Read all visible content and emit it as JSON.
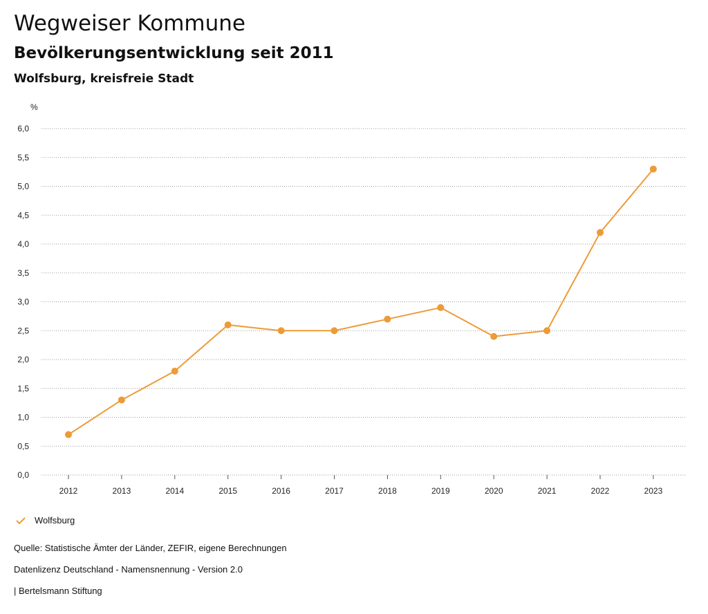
{
  "header": {
    "title": "Wegweiser Kommune",
    "subtitle": "Bevölkerungsentwicklung seit 2011",
    "region": "Wolfsburg, kreisfreie Stadt"
  },
  "chart_data": {
    "type": "line",
    "unit_label": "%",
    "categories": [
      "2012",
      "2013",
      "2014",
      "2015",
      "2016",
      "2017",
      "2018",
      "2019",
      "2020",
      "2021",
      "2022",
      "2023"
    ],
    "series": [
      {
        "name": "Wolfsburg",
        "color": "#ED9B36",
        "values": [
          0.7,
          1.3,
          1.8,
          2.6,
          2.5,
          2.5,
          2.7,
          2.9,
          2.4,
          2.5,
          4.2,
          5.3
        ]
      }
    ],
    "ylim": [
      0,
      6
    ],
    "yticks": [
      "0,0",
      "0,5",
      "1,0",
      "1,5",
      "2,0",
      "2,5",
      "3,0",
      "3,5",
      "4,0",
      "4,5",
      "5,0",
      "5,5",
      "6,0"
    ],
    "grid": true,
    "legend_position": "bottom-left"
  },
  "legend": {
    "label": "Wolfsburg"
  },
  "footer": {
    "source": "Quelle: Statistische Ämter der Länder, ZEFIR, eigene Berechnungen",
    "license": "Datenlizenz Deutschland - Namensnennung - Version 2.0",
    "publisher": "| Bertelsmann Stiftung"
  }
}
